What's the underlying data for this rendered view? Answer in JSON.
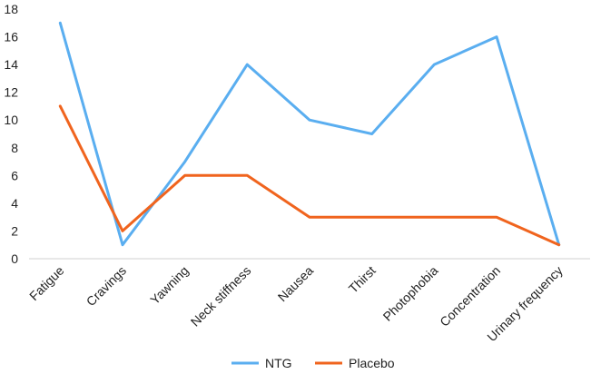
{
  "chart_data": {
    "type": "line",
    "title": "",
    "xlabel": "",
    "ylabel": "",
    "categories": [
      "Fatigue",
      "Cravings",
      "Yawning",
      "Neck stiffness",
      "Nausea",
      "Thirst",
      "Photophobia",
      "Concentration",
      "Urinary frequency"
    ],
    "ylim": [
      0,
      18
    ],
    "yticks": [
      0,
      2,
      4,
      6,
      8,
      10,
      12,
      14,
      16,
      18
    ],
    "grid": false,
    "legend_position": "bottom",
    "series": [
      {
        "name": "NTG",
        "color": "#5AAEF0",
        "values": [
          17,
          1,
          7,
          14,
          10,
          9,
          14,
          16,
          1
        ]
      },
      {
        "name": "Placebo",
        "color": "#F0641E",
        "values": [
          11,
          2,
          6,
          6,
          3,
          3,
          3,
          3,
          1
        ]
      }
    ]
  }
}
